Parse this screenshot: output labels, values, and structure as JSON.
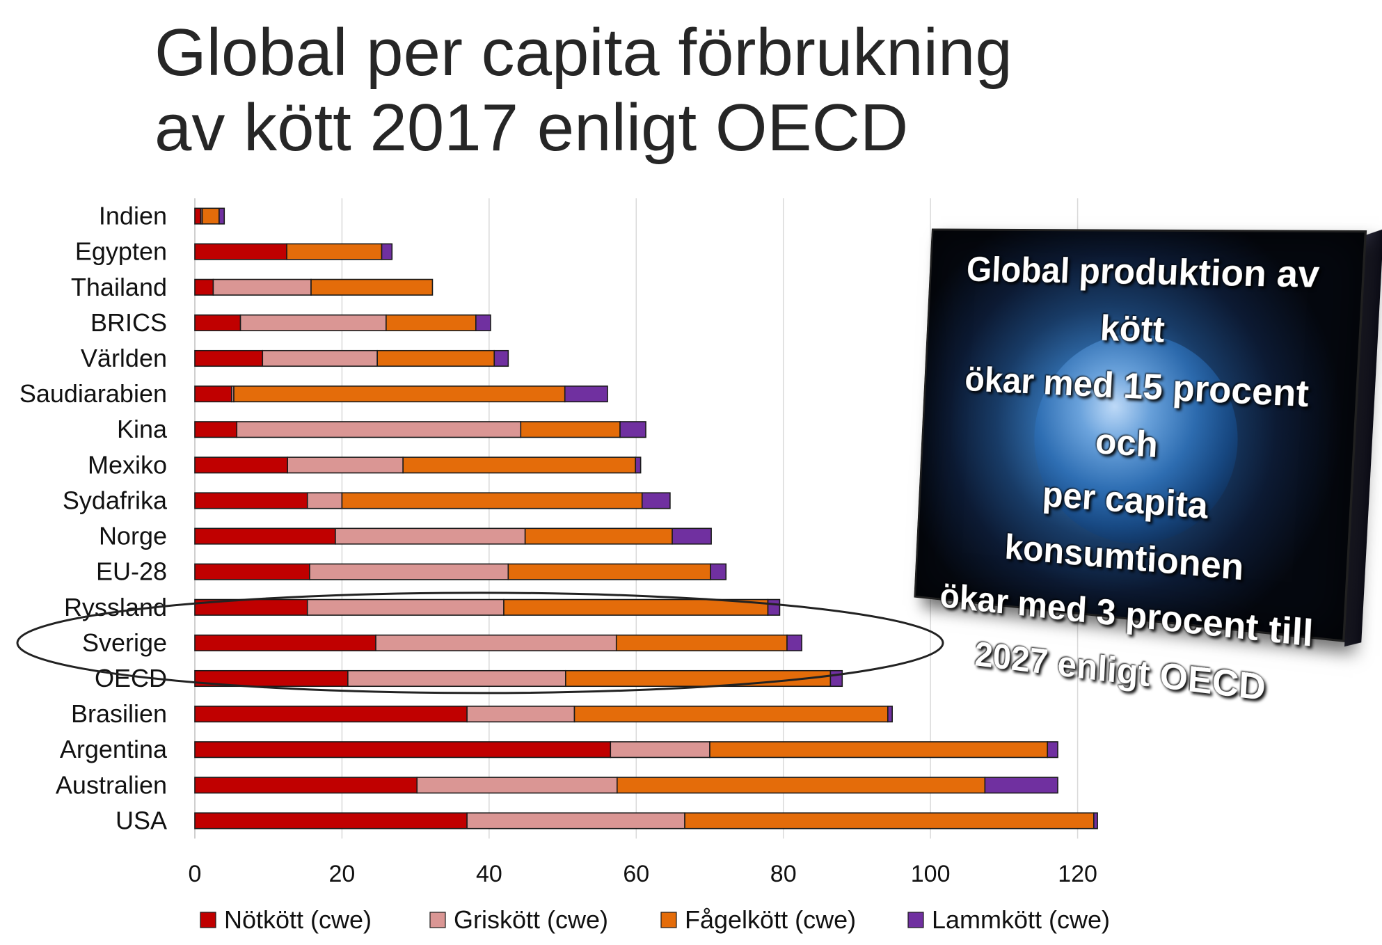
{
  "title": "Global per capita förbrukning\nav kött 2017 enligt OECD",
  "chart_data": {
    "type": "bar",
    "orientation": "horizontal",
    "stacked": true,
    "categories": [
      "Indien",
      "Egypten",
      "Thailand",
      "BRICS",
      "Världen",
      "Saudiarabien",
      "Kina",
      "Mexiko",
      "Sydafrika",
      "Norge",
      "EU-28",
      "Ryssland",
      "Sverige",
      "OECD",
      "Brasilien",
      "Argentina",
      "Australien",
      "USA"
    ],
    "series": [
      {
        "name": "Nötkött (cwe)",
        "color": "#c00000",
        "values": [
          0.8,
          12.5,
          2.5,
          6.2,
          9.2,
          5.0,
          5.7,
          12.6,
          15.3,
          19.1,
          15.6,
          15.3,
          24.6,
          20.8,
          37.0,
          56.5,
          30.2,
          37.0
        ]
      },
      {
        "name": "Griskött (cwe)",
        "color": "#da9694",
        "values": [
          0.2,
          0.0,
          13.3,
          19.8,
          15.6,
          0.3,
          38.6,
          15.7,
          4.7,
          25.8,
          27.0,
          26.7,
          32.7,
          29.6,
          14.6,
          13.5,
          27.2,
          29.6
        ]
      },
      {
        "name": "Fågelkött (cwe)",
        "color": "#e46c0a",
        "values": [
          2.3,
          12.9,
          16.5,
          12.2,
          15.9,
          45.0,
          13.5,
          31.6,
          40.8,
          20.0,
          27.5,
          35.9,
          23.2,
          36.0,
          42.6,
          45.9,
          50.0,
          55.6
        ]
      },
      {
        "name": "Lammkött (cwe)",
        "color": "#7030a0",
        "values": [
          0.7,
          1.4,
          0.0,
          2.0,
          1.9,
          5.8,
          3.5,
          0.7,
          3.8,
          5.3,
          2.1,
          1.6,
          2.0,
          1.6,
          0.6,
          1.4,
          9.9,
          0.5
        ]
      }
    ],
    "xlim": [
      0,
      140
    ],
    "xticks": [
      0,
      20,
      40,
      60,
      80,
      100,
      120
    ],
    "grid": true,
    "legend_position": "bottom",
    "highlighted_category": "Sverige"
  },
  "info_panel": {
    "text": "Global produktion av kött\nökar med 15 procent och\nper capita konsumtionen\nökar med 3 procent till\n2027 enligt OECD"
  }
}
